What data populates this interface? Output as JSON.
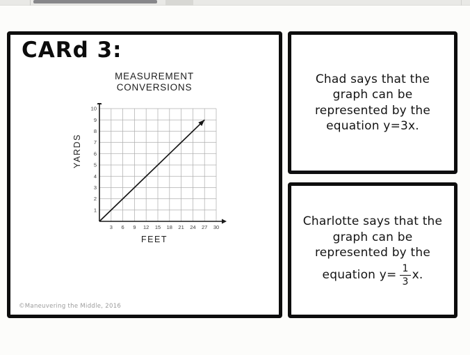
{
  "card": {
    "title": "CARd 3:",
    "copyright": "©Maneuvering the Middle, 2016"
  },
  "chart_data": {
    "type": "line",
    "title": "MEASUREMENT CONVERSIONS",
    "title_lines": [
      "MEASUREMENT",
      "CONVERSIONS"
    ],
    "xlabel": "FEET",
    "ylabel": "YARDS",
    "xlim": [
      0,
      30
    ],
    "ylim": [
      0,
      10
    ],
    "xticks": [
      3,
      6,
      9,
      12,
      15,
      18,
      21,
      24,
      27,
      30
    ],
    "yticks": [
      1,
      2,
      3,
      4,
      5,
      6,
      7,
      8,
      9,
      10
    ],
    "grid": true,
    "series": [
      {
        "name": "conversion-line",
        "points": [
          [
            0,
            0
          ],
          [
            27,
            9
          ]
        ],
        "arrow_end": true
      }
    ]
  },
  "panels": {
    "chad": {
      "lines": [
        "Chad says that the",
        "graph can be",
        "represented by the",
        "equation y=3x."
      ]
    },
    "charlotte": {
      "lines": [
        "Charlotte says that the",
        "graph can be",
        "represented by the"
      ],
      "equation_prefix": "equation y=",
      "fraction": {
        "numerator": "1",
        "denominator": "3"
      },
      "equation_suffix": "x."
    }
  }
}
